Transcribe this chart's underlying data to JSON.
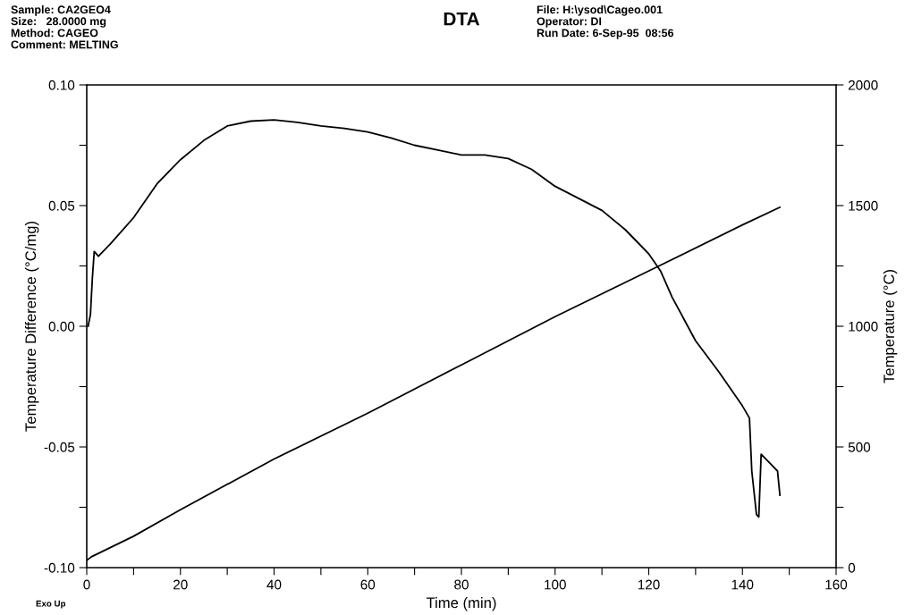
{
  "chart_data": {
    "type": "line",
    "title": "DTA",
    "xlabel": "Time (min)",
    "ylabel": "Temperature Difference (°C/mg)",
    "y2label": "Temperature (°C)",
    "annotations": [
      "Sample: CA2GEO4\nSize:   28.0000 mg\nMethod: CAGEO\nComment: MELTING",
      "File: H:\\ysod\\Cageo.001\nOperator: DI\nRun Date: 6-Sep-95  08:56",
      "Exo Up"
    ],
    "series": [
      {
        "color": "#000000",
        "x": [
          0.3,
          0.8,
          1.2,
          1.6,
          2.5,
          5,
          10,
          15,
          20,
          25,
          30,
          35,
          40,
          45,
          50,
          55,
          60,
          65,
          70,
          75,
          80,
          85,
          90,
          95,
          100,
          105,
          110,
          115,
          120,
          122.5,
          125,
          130,
          135,
          140,
          141.5,
          142,
          143,
          143.5,
          144,
          146,
          147.5,
          148
        ],
        "values": [
          0.0,
          0.005,
          0.02,
          0.031,
          0.029,
          0.034,
          0.045,
          0.059,
          0.069,
          0.077,
          0.083,
          0.085,
          0.0855,
          0.0845,
          0.083,
          0.082,
          0.0805,
          0.078,
          0.075,
          0.073,
          0.071,
          0.071,
          0.0695,
          0.065,
          0.058,
          0.053,
          0.048,
          0.04,
          0.03,
          0.023,
          0.012,
          -0.006,
          -0.019,
          -0.033,
          -0.038,
          -0.06,
          -0.078,
          -0.079,
          -0.053,
          -0.057,
          -0.06,
          -0.07
        ]
      },
      {
        "color": "#000000",
        "axis": "y2",
        "x": [
          0,
          1,
          10,
          20,
          40,
          60,
          80,
          100,
          122,
          140,
          148
        ],
        "values": [
          30,
          45,
          130,
          240,
          450,
          640,
          840,
          1040,
          1248,
          1420,
          1493
        ]
      }
    ],
    "xlim": [
      0,
      160
    ],
    "xticks": [
      0,
      {
        "value": 10,
        "label": null
      },
      20,
      {
        "value": 30,
        "label": null
      },
      40,
      {
        "value": 50,
        "label": null
      },
      60,
      {
        "value": 70,
        "label": null
      },
      80,
      {
        "value": 90,
        "label": null
      },
      100,
      {
        "value": 110,
        "label": null
      },
      120,
      {
        "value": 130,
        "label": null
      },
      140,
      {
        "value": 150,
        "label": null
      },
      160
    ],
    "ylim": [
      -0.1,
      0.1
    ],
    "yticks": [
      {
        "value": -0.1,
        "label": "-0.10"
      },
      {
        "value": -0.075,
        "label": null
      },
      {
        "value": -0.05,
        "label": "-0.05"
      },
      {
        "value": -0.025,
        "label": null
      },
      {
        "value": 0,
        "label": "0.00"
      },
      {
        "value": 0.025,
        "label": null
      },
      {
        "value": 0.05,
        "label": "0.05"
      },
      {
        "value": 0.075,
        "label": null
      },
      {
        "value": 0.1,
        "label": "0.10"
      }
    ],
    "y2lim": [
      0,
      2000
    ],
    "y2ticks": [
      0,
      {
        "value": 250,
        "label": null
      },
      500,
      {
        "value": 750,
        "label": null
      },
      1000,
      {
        "value": 1250,
        "label": null
      },
      1500,
      {
        "value": 1750,
        "label": null
      },
      2000
    ],
    "grid": false,
    "line_style": "solid",
    "marker": "none"
  }
}
